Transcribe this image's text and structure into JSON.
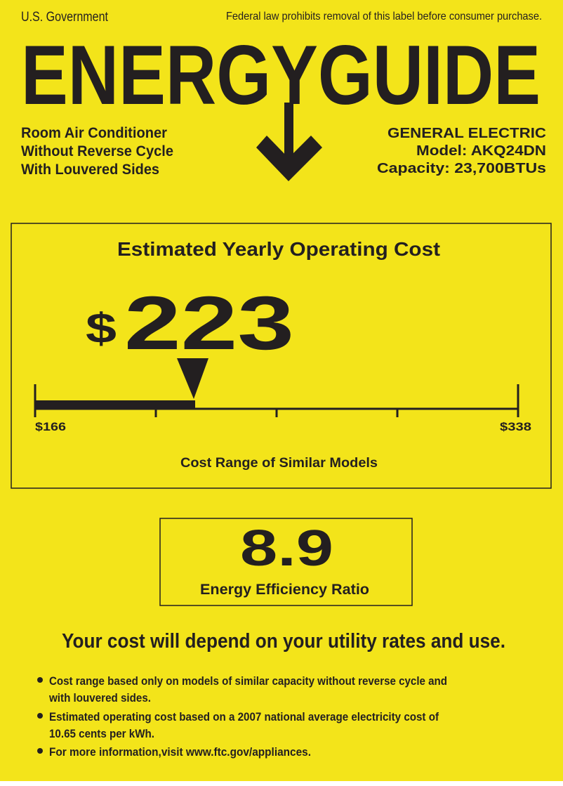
{
  "header": {
    "issuer": "U.S. Government",
    "legal_notice": "Federal law prohibits removal of this label before consumer purchase.",
    "title": "ENERGYGUIDE"
  },
  "product": {
    "type_lines": [
      "Room Air Conditioner",
      "Without Reverse Cycle",
      "With Louvered Sides"
    ],
    "manufacturer": "GENERAL ELECTRIC",
    "model": "Model: AKQ24DN",
    "capacity": "Capacity: 23,700BTUs"
  },
  "cost": {
    "heading": "Estimated Yearly Operating Cost",
    "currency": "$",
    "value": "223",
    "value_number": 223,
    "range_min": 166,
    "range_max": 338,
    "range_min_label": "$166",
    "range_max_label": "$338",
    "range_caption": "Cost Range of Similar Models"
  },
  "efficiency": {
    "value": "8.9",
    "label": "Energy Efficiency Ratio"
  },
  "footer": {
    "headline": "Your cost will depend on your utility rates and use.",
    "bullets": [
      [
        "Cost range based only on models of similar capacity without reverse cycle and",
        "with louvered sides."
      ],
      [
        "Estimated operating cost based on a 2007 national average electricity cost of",
        "10.65 cents per kWh."
      ],
      [
        "For more information,visit www.ftc.gov/appliances."
      ]
    ]
  },
  "colors": {
    "background": "#f3e41a",
    "ink": "#231f20"
  }
}
